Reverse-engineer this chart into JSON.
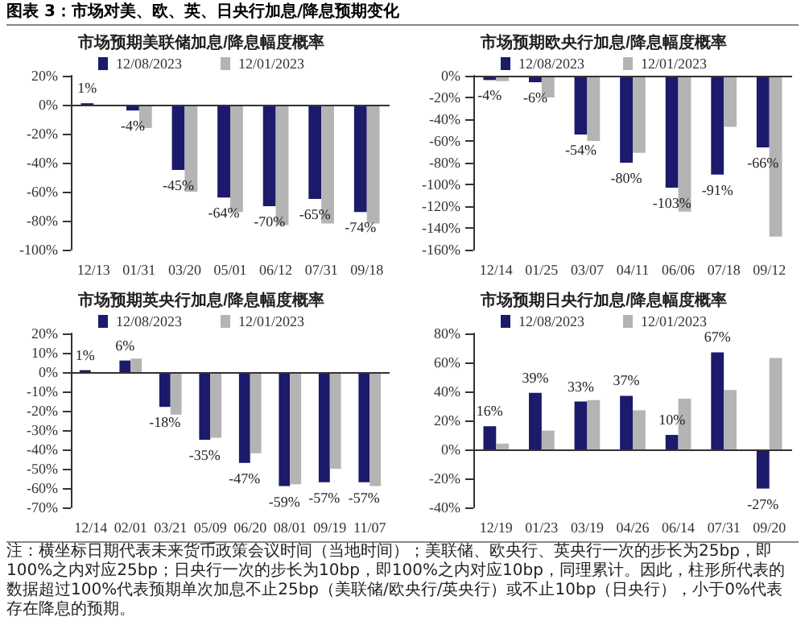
{
  "chart_data": [
    {
      "type": "bar",
      "title": "市场预期美联储加息/降息幅度概率",
      "annotations": [
        "图表 3：市场对美、欧、英、日央行加息/降息预期变化"
      ],
      "categories": [
        "12/13",
        "01/31",
        "03/20",
        "05/01",
        "06/12",
        "07/31",
        "09/18"
      ],
      "legend": "top",
      "series": [
        {
          "name": "12/08/2023",
          "color": "#1c1a6b",
          "values": [
            1,
            -4,
            -45,
            -64,
            -70,
            -65,
            -74
          ],
          "value_labels": [
            "1%",
            "-4%",
            "-45%",
            "-64%",
            "-70%",
            "-65%",
            "-74%"
          ]
        },
        {
          "name": "12/01/2023",
          "color": "#b4b4b4",
          "values": [
            0,
            -16,
            -60,
            -74,
            -83,
            -82,
            -82
          ]
        }
      ],
      "ylim": [
        -100,
        20
      ],
      "yticks": [
        {
          "value": -100,
          "label": "-100%"
        },
        {
          "value": -80,
          "label": "-80%"
        },
        {
          "value": -60,
          "label": "-60%"
        },
        {
          "value": -40,
          "label": "-40%"
        },
        {
          "value": -20,
          "label": "-20%"
        },
        {
          "value": 0,
          "label": "0%"
        },
        {
          "value": 20,
          "label": "20%"
        }
      ]
    },
    {
      "type": "bar",
      "title": "市场预期欧央行加息/降息幅度概率",
      "categories": [
        "12/14",
        "01/25",
        "03/07",
        "04/11",
        "06/06",
        "07/18",
        "09/12"
      ],
      "legend": "top",
      "series": [
        {
          "name": "12/08/2023",
          "color": "#1c1a6b",
          "values": [
            -4,
            -6,
            -54,
            -80,
            -103,
            -91,
            -66
          ],
          "value_labels": [
            "-4%",
            "-6%",
            "-54%",
            "-80%",
            "-103%",
            "-91%",
            "-66%"
          ]
        },
        {
          "name": "12/01/2023",
          "color": "#b4b4b4",
          "values": [
            -5,
            -20,
            -60,
            -71,
            -125,
            -47,
            -148
          ]
        }
      ],
      "ylim": [
        -160,
        0
      ],
      "yticks": [
        {
          "value": -160,
          "label": "-160%"
        },
        {
          "value": -140,
          "label": "-140%"
        },
        {
          "value": -120,
          "label": "-120%"
        },
        {
          "value": -100,
          "label": "-100%"
        },
        {
          "value": -80,
          "label": "-80%"
        },
        {
          "value": -60,
          "label": "-60%"
        },
        {
          "value": -40,
          "label": "-40%"
        },
        {
          "value": -20,
          "label": "-20%"
        },
        {
          "value": 0,
          "label": "0%"
        }
      ]
    },
    {
      "type": "bar",
      "title": "市场预期英央行加息/降息幅度概率",
      "categories": [
        "12/14",
        "02/01",
        "03/21",
        "05/09",
        "06/20",
        "08/01",
        "09/19",
        "11/07"
      ],
      "legend": "top",
      "series": [
        {
          "name": "12/08/2023",
          "color": "#1c1a6b",
          "values": [
            1,
            6,
            -18,
            -35,
            -47,
            -59,
            -57,
            -57
          ],
          "value_labels": [
            "1%",
            "6%",
            "-18%",
            "-35%",
            "-47%",
            "-59%",
            "-57%",
            "-57%"
          ]
        },
        {
          "name": "12/01/2023",
          "color": "#b4b4b4",
          "values": [
            0,
            7,
            -22,
            -34,
            -42,
            -58,
            -50,
            -59
          ]
        }
      ],
      "ylim": [
        -70,
        20
      ],
      "yticks": [
        {
          "value": -70,
          "label": "-70%"
        },
        {
          "value": -60,
          "label": "-60%"
        },
        {
          "value": -50,
          "label": "-50%"
        },
        {
          "value": -40,
          "label": "-40%"
        },
        {
          "value": -30,
          "label": "-30%"
        },
        {
          "value": -20,
          "label": "-20%"
        },
        {
          "value": -10,
          "label": "-10%"
        },
        {
          "value": 0,
          "label": "0%"
        },
        {
          "value": 10,
          "label": "10%"
        },
        {
          "value": 20,
          "label": "20%"
        }
      ]
    },
    {
      "type": "bar",
      "title": "市场预期日央行加息/降息幅度概率",
      "annotations": [
        "注：横坐标日期代表未来货币政策会议时间（当地时间）；美联储、欧央行、英央行一次的步长为25bp，即100%之内对应25bp；日央行一次的步长为10bp，即100%之内对应10bp，同理累计。因此，柱形所代表的数据超过100%代表预期单次加息不止25bp（美联储/欧央行/英央行）或不止10bp（日央行），小于0%代表存在降息的预期。"
      ],
      "categories": [
        "12/19",
        "01/23",
        "03/19",
        "04/26",
        "06/14",
        "07/31",
        "09/20"
      ],
      "legend": "top",
      "series": [
        {
          "name": "12/08/2023",
          "color": "#1c1a6b",
          "values": [
            16,
            39,
            33,
            37,
            10,
            67,
            -27
          ],
          "value_labels": [
            "16%",
            "39%",
            "33%",
            "37%",
            "10%",
            "67%",
            "-27%"
          ]
        },
        {
          "name": "12/01/2023",
          "color": "#b4b4b4",
          "values": [
            4,
            13,
            34,
            27,
            35,
            41,
            63
          ]
        }
      ],
      "ylim": [
        -40,
        80
      ],
      "yticks": [
        {
          "value": -40,
          "label": "-40%"
        },
        {
          "value": -20,
          "label": "-20%"
        },
        {
          "value": 0,
          "label": "0%"
        },
        {
          "value": 20,
          "label": "20%"
        },
        {
          "value": 40,
          "label": "40%"
        },
        {
          "value": 60,
          "label": "60%"
        },
        {
          "value": 80,
          "label": "80%"
        }
      ]
    }
  ]
}
